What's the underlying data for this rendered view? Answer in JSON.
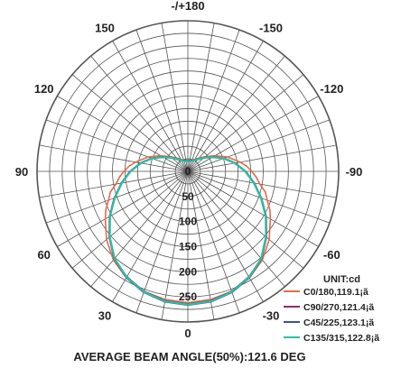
{
  "chart_data": {
    "type": "polar",
    "unit_label": "UNIT:cd",
    "footer": "AVERAGE BEAM ANGLE(50%):121.6 DEG",
    "angle_labels": [
      {
        "deg": 180,
        "text": "-/+180"
      },
      {
        "deg": -150,
        "text": "-150"
      },
      {
        "deg": 150,
        "text": "150"
      },
      {
        "deg": -120,
        "text": "-120"
      },
      {
        "deg": 120,
        "text": "120"
      },
      {
        "deg": -90,
        "text": "-90"
      },
      {
        "deg": 90,
        "text": "90"
      },
      {
        "deg": -60,
        "text": "-60"
      },
      {
        "deg": 60,
        "text": "60"
      },
      {
        "deg": -30,
        "text": "-30"
      },
      {
        "deg": 30,
        "text": "30"
      },
      {
        "deg": 0,
        "text": "0"
      }
    ],
    "radial_labels": [
      "0",
      "50",
      "100",
      "150",
      "200",
      "250"
    ],
    "rmax": 250,
    "series": [
      {
        "name": "C0/180,119.1¡ã",
        "color": "#e8694a",
        "points": [
          [
            0,
            218
          ],
          [
            10,
            216
          ],
          [
            20,
            212
          ],
          [
            30,
            204
          ],
          [
            40,
            192
          ],
          [
            50,
            176
          ],
          [
            60,
            158
          ],
          [
            65,
            150
          ],
          [
            70,
            140
          ],
          [
            75,
            133
          ],
          [
            80,
            121
          ],
          [
            85,
            114
          ],
          [
            90,
            106
          ],
          [
            95,
            98
          ],
          [
            100,
            88
          ],
          [
            110,
            70
          ],
          [
            120,
            52
          ],
          [
            130,
            38
          ],
          [
            140,
            29
          ],
          [
            150,
            23
          ],
          [
            160,
            20
          ],
          [
            170,
            18
          ],
          [
            180,
            18
          ],
          [
            190,
            18
          ],
          [
            200,
            20
          ],
          [
            210,
            23
          ],
          [
            220,
            29
          ],
          [
            230,
            38
          ],
          [
            240,
            52
          ],
          [
            250,
            70
          ],
          [
            260,
            88
          ],
          [
            265,
            98
          ],
          [
            270,
            106
          ],
          [
            275,
            114
          ],
          [
            280,
            121
          ],
          [
            285,
            133
          ],
          [
            290,
            140
          ],
          [
            295,
            150
          ],
          [
            300,
            158
          ],
          [
            310,
            176
          ],
          [
            320,
            192
          ],
          [
            330,
            204
          ],
          [
            340,
            212
          ],
          [
            350,
            216
          ]
        ]
      },
      {
        "name": "C90/270,121.4¡ã",
        "color": "#8a2f6e",
        "points": [
          [
            0,
            220
          ],
          [
            10,
            218
          ],
          [
            20,
            212
          ],
          [
            30,
            202
          ],
          [
            40,
            190
          ],
          [
            50,
            170
          ],
          [
            60,
            150
          ],
          [
            70,
            130
          ],
          [
            80,
            112
          ],
          [
            90,
            96
          ],
          [
            100,
            80
          ],
          [
            110,
            64
          ],
          [
            120,
            48
          ],
          [
            130,
            36
          ],
          [
            140,
            27
          ],
          [
            150,
            22
          ],
          [
            160,
            19
          ],
          [
            170,
            18
          ],
          [
            180,
            18
          ],
          [
            190,
            18
          ],
          [
            200,
            19
          ],
          [
            210,
            22
          ],
          [
            220,
            27
          ],
          [
            230,
            36
          ],
          [
            240,
            48
          ],
          [
            250,
            64
          ],
          [
            260,
            80
          ],
          [
            270,
            96
          ],
          [
            280,
            112
          ],
          [
            290,
            130
          ],
          [
            300,
            150
          ],
          [
            310,
            170
          ],
          [
            320,
            190
          ],
          [
            330,
            202
          ],
          [
            340,
            212
          ],
          [
            350,
            218
          ]
        ]
      },
      {
        "name": "C45/225,123.1¡ã",
        "color": "#3a4fa0",
        "points": [
          [
            0,
            222
          ],
          [
            10,
            220
          ],
          [
            20,
            214
          ],
          [
            30,
            204
          ],
          [
            40,
            190
          ],
          [
            50,
            170
          ],
          [
            60,
            150
          ],
          [
            70,
            130
          ],
          [
            80,
            112
          ],
          [
            90,
            96
          ],
          [
            100,
            80
          ],
          [
            110,
            64
          ],
          [
            120,
            48
          ],
          [
            130,
            36
          ],
          [
            140,
            27
          ],
          [
            150,
            22
          ],
          [
            160,
            19
          ],
          [
            170,
            18
          ],
          [
            180,
            18
          ],
          [
            190,
            18
          ],
          [
            200,
            19
          ],
          [
            210,
            22
          ],
          [
            220,
            27
          ],
          [
            230,
            36
          ],
          [
            240,
            48
          ],
          [
            250,
            64
          ],
          [
            260,
            80
          ],
          [
            270,
            96
          ],
          [
            280,
            112
          ],
          [
            290,
            130
          ],
          [
            300,
            150
          ],
          [
            310,
            170
          ],
          [
            320,
            190
          ],
          [
            330,
            204
          ],
          [
            340,
            214
          ],
          [
            350,
            220
          ]
        ]
      },
      {
        "name": "C135/315,122.8¡ã",
        "color": "#2bbfa0",
        "points": [
          [
            0,
            221
          ],
          [
            10,
            219
          ],
          [
            20,
            213
          ],
          [
            30,
            203
          ],
          [
            40,
            189
          ],
          [
            50,
            169
          ],
          [
            60,
            149
          ],
          [
            70,
            129
          ],
          [
            80,
            111
          ],
          [
            90,
            95
          ],
          [
            100,
            79
          ],
          [
            110,
            63
          ],
          [
            120,
            47
          ],
          [
            130,
            35
          ],
          [
            140,
            26
          ],
          [
            150,
            21
          ],
          [
            160,
            18
          ],
          [
            170,
            17
          ],
          [
            180,
            17
          ],
          [
            190,
            17
          ],
          [
            200,
            18
          ],
          [
            210,
            21
          ],
          [
            220,
            26
          ],
          [
            230,
            35
          ],
          [
            240,
            47
          ],
          [
            250,
            63
          ],
          [
            260,
            79
          ],
          [
            270,
            95
          ],
          [
            280,
            111
          ],
          [
            290,
            129
          ],
          [
            300,
            149
          ],
          [
            310,
            169
          ],
          [
            320,
            189
          ],
          [
            330,
            203
          ],
          [
            340,
            213
          ],
          [
            350,
            219
          ]
        ]
      }
    ]
  }
}
